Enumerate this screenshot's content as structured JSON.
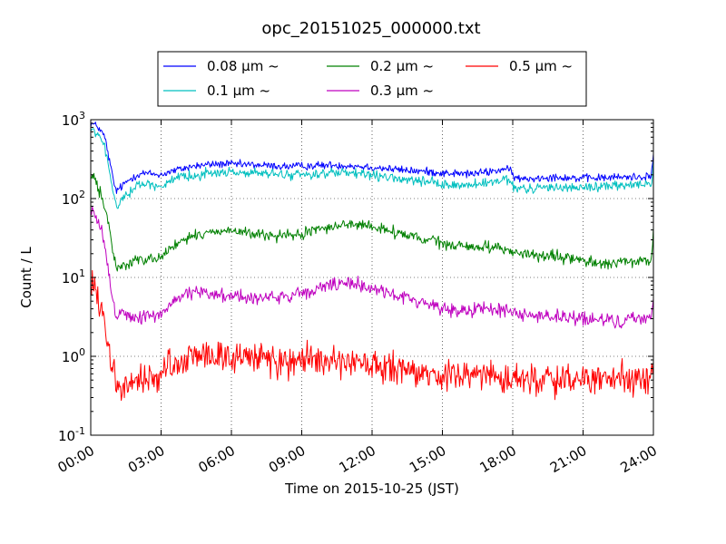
{
  "chart_data": {
    "type": "line",
    "title": "opc_20151025_000000.txt",
    "xlabel": "Time on 2015-10-25 (JST)",
    "ylabel": "Count / L",
    "yscale": "log",
    "ylim": [
      0.1,
      1000
    ],
    "xlim": [
      "00:00",
      "24:00"
    ],
    "x_unit": "hour",
    "x_ticks": [
      "00:00",
      "03:00",
      "06:00",
      "09:00",
      "12:00",
      "15:00",
      "18:00",
      "21:00",
      "24:00"
    ],
    "y_ticks": [
      {
        "value": 0.1,
        "base": "10",
        "exp": "-1"
      },
      {
        "value": 1,
        "base": "10",
        "exp": "0"
      },
      {
        "value": 10,
        "base": "10",
        "exp": "1"
      },
      {
        "value": 100,
        "base": "10",
        "exp": "2"
      },
      {
        "value": 1000,
        "base": "10",
        "exp": "3"
      }
    ],
    "grid": true,
    "legend_position": "top-center",
    "series": [
      {
        "name": "0.08 μm ~",
        "color": "#0000ff",
        "noise": 0.025,
        "points": [
          [
            0.0,
            900
          ],
          [
            0.3,
            820
          ],
          [
            0.6,
            600
          ],
          [
            0.8,
            300
          ],
          [
            1.0,
            150
          ],
          [
            1.1,
            125
          ],
          [
            1.3,
            140
          ],
          [
            1.6,
            170
          ],
          [
            1.9,
            195
          ],
          [
            2.2,
            210
          ],
          [
            2.6,
            205
          ],
          [
            3.0,
            200
          ],
          [
            3.3,
            215
          ],
          [
            3.8,
            235
          ],
          [
            4.3,
            255
          ],
          [
            5.0,
            270
          ],
          [
            5.7,
            275
          ],
          [
            6.3,
            270
          ],
          [
            7.0,
            268
          ],
          [
            7.6,
            260
          ],
          [
            8.3,
            255
          ],
          [
            9.0,
            258
          ],
          [
            9.6,
            262
          ],
          [
            10.3,
            265
          ],
          [
            11.0,
            262
          ],
          [
            11.6,
            255
          ],
          [
            12.0,
            250
          ],
          [
            12.6,
            240
          ],
          [
            13.3,
            230
          ],
          [
            14.0,
            222
          ],
          [
            14.6,
            218
          ],
          [
            15.0,
            210
          ],
          [
            15.6,
            208
          ],
          [
            16.2,
            205
          ],
          [
            16.8,
            215
          ],
          [
            17.3,
            225
          ],
          [
            17.7,
            240
          ],
          [
            17.9,
            220
          ],
          [
            18.1,
            185
          ],
          [
            18.4,
            175
          ],
          [
            19.0,
            182
          ],
          [
            19.6,
            188
          ],
          [
            20.2,
            186
          ],
          [
            20.8,
            180
          ],
          [
            21.5,
            182
          ],
          [
            22.2,
            185
          ],
          [
            23.0,
            188
          ],
          [
            23.6,
            190
          ],
          [
            23.9,
            195
          ],
          [
            23.97,
            280
          ],
          [
            24.0,
            380
          ]
        ]
      },
      {
        "name": "0.1 μm ~",
        "color": "#00bfbf",
        "noise": 0.03,
        "points": [
          [
            0.0,
            750
          ],
          [
            0.3,
            650
          ],
          [
            0.6,
            450
          ],
          [
            0.8,
            220
          ],
          [
            1.0,
            100
          ],
          [
            1.1,
            78
          ],
          [
            1.3,
            95
          ],
          [
            1.6,
            120
          ],
          [
            1.9,
            140
          ],
          [
            2.2,
            155
          ],
          [
            2.6,
            150
          ],
          [
            3.0,
            145
          ],
          [
            3.3,
            160
          ],
          [
            3.8,
            180
          ],
          [
            4.3,
            195
          ],
          [
            5.0,
            210
          ],
          [
            5.7,
            215
          ],
          [
            6.3,
            215
          ],
          [
            7.0,
            210
          ],
          [
            7.6,
            205
          ],
          [
            8.3,
            200
          ],
          [
            9.0,
            202
          ],
          [
            9.6,
            205
          ],
          [
            10.3,
            210
          ],
          [
            11.0,
            208
          ],
          [
            11.6,
            202
          ],
          [
            12.0,
            195
          ],
          [
            12.6,
            185
          ],
          [
            13.3,
            175
          ],
          [
            14.0,
            165
          ],
          [
            14.6,
            158
          ],
          [
            15.0,
            150
          ],
          [
            15.6,
            148
          ],
          [
            16.2,
            148
          ],
          [
            16.8,
            155
          ],
          [
            17.3,
            162
          ],
          [
            17.7,
            172
          ],
          [
            17.9,
            160
          ],
          [
            18.1,
            135
          ],
          [
            18.4,
            130
          ],
          [
            19.0,
            135
          ],
          [
            19.6,
            140
          ],
          [
            20.2,
            140
          ],
          [
            20.8,
            138
          ],
          [
            21.5,
            140
          ],
          [
            22.2,
            145
          ],
          [
            23.0,
            148
          ],
          [
            23.6,
            150
          ],
          [
            23.9,
            155
          ],
          [
            23.97,
            200
          ],
          [
            24.0,
            280
          ]
        ]
      },
      {
        "name": "0.2 μm ~",
        "color": "#008000",
        "noise": 0.035,
        "points": [
          [
            0.0,
            190
          ],
          [
            0.2,
            170
          ],
          [
            0.5,
            100
          ],
          [
            0.8,
            40
          ],
          [
            1.0,
            18
          ],
          [
            1.1,
            13
          ],
          [
            1.3,
            14
          ],
          [
            1.6,
            15
          ],
          [
            1.9,
            16
          ],
          [
            2.2,
            17
          ],
          [
            2.6,
            18
          ],
          [
            3.0,
            18
          ],
          [
            3.2,
            20
          ],
          [
            3.4,
            24
          ],
          [
            3.8,
            28
          ],
          [
            4.3,
            32
          ],
          [
            5.0,
            37
          ],
          [
            5.7,
            40
          ],
          [
            6.3,
            38
          ],
          [
            7.0,
            35
          ],
          [
            7.6,
            34
          ],
          [
            8.3,
            33
          ],
          [
            9.0,
            35
          ],
          [
            9.6,
            40
          ],
          [
            10.3,
            45
          ],
          [
            11.0,
            47
          ],
          [
            11.6,
            46
          ],
          [
            12.0,
            44
          ],
          [
            12.6,
            40
          ],
          [
            13.3,
            35
          ],
          [
            14.0,
            31
          ],
          [
            14.6,
            29
          ],
          [
            15.0,
            27
          ],
          [
            15.6,
            25
          ],
          [
            16.2,
            24
          ],
          [
            16.8,
            25
          ],
          [
            17.3,
            24
          ],
          [
            17.7,
            23
          ],
          [
            18.0,
            21
          ],
          [
            18.4,
            20
          ],
          [
            19.0,
            19
          ],
          [
            19.6,
            18
          ],
          [
            20.2,
            18
          ],
          [
            20.8,
            16.5
          ],
          [
            21.5,
            15.5
          ],
          [
            22.2,
            15
          ],
          [
            23.0,
            15.5
          ],
          [
            23.6,
            16
          ],
          [
            23.9,
            16.5
          ],
          [
            23.97,
            25
          ],
          [
            24.0,
            38
          ]
        ]
      },
      {
        "name": "0.3 μm ~",
        "color": "#bf00bf",
        "noise": 0.045,
        "points": [
          [
            0.0,
            70
          ],
          [
            0.2,
            60
          ],
          [
            0.5,
            35
          ],
          [
            0.8,
            10
          ],
          [
            1.0,
            4.5
          ],
          [
            1.1,
            3.3
          ],
          [
            1.3,
            3.6
          ],
          [
            1.6,
            3.4
          ],
          [
            1.9,
            3.0
          ],
          [
            2.2,
            3.1
          ],
          [
            2.6,
            3.2
          ],
          [
            3.0,
            3.4
          ],
          [
            3.2,
            4.0
          ],
          [
            3.5,
            5.0
          ],
          [
            3.9,
            6.0
          ],
          [
            4.4,
            6.4
          ],
          [
            5.0,
            6.3
          ],
          [
            5.7,
            6.0
          ],
          [
            6.3,
            5.8
          ],
          [
            7.0,
            5.5
          ],
          [
            7.6,
            5.6
          ],
          [
            8.3,
            5.7
          ],
          [
            9.0,
            6.0
          ],
          [
            9.6,
            7.0
          ],
          [
            10.2,
            8.0
          ],
          [
            10.8,
            8.2
          ],
          [
            11.4,
            8.0
          ],
          [
            12.0,
            7.5
          ],
          [
            12.6,
            6.5
          ],
          [
            13.3,
            5.6
          ],
          [
            14.0,
            5.0
          ],
          [
            14.6,
            4.5
          ],
          [
            15.0,
            4.0
          ],
          [
            15.6,
            3.8
          ],
          [
            16.2,
            3.9
          ],
          [
            16.8,
            4.1
          ],
          [
            17.3,
            3.9
          ],
          [
            17.7,
            3.8
          ],
          [
            18.0,
            3.6
          ],
          [
            18.4,
            3.5
          ],
          [
            19.0,
            3.3
          ],
          [
            19.6,
            3.2
          ],
          [
            20.2,
            3.1
          ],
          [
            20.8,
            3.0
          ],
          [
            21.5,
            2.9
          ],
          [
            22.2,
            2.8
          ],
          [
            23.0,
            2.9
          ],
          [
            23.6,
            3.0
          ],
          [
            23.9,
            3.1
          ],
          [
            23.97,
            5.0
          ],
          [
            24.0,
            7.0
          ]
        ]
      },
      {
        "name": "0.5 μm ~",
        "color": "#ff0000",
        "noise": 0.1,
        "points": [
          [
            0.0,
            8.0
          ],
          [
            0.2,
            7.0
          ],
          [
            0.5,
            3.5
          ],
          [
            0.8,
            1.0
          ],
          [
            1.0,
            0.55
          ],
          [
            1.1,
            0.42
          ],
          [
            1.3,
            0.4
          ],
          [
            1.6,
            0.42
          ],
          [
            1.9,
            0.48
          ],
          [
            2.2,
            0.5
          ],
          [
            2.6,
            0.52
          ],
          [
            3.0,
            0.55
          ],
          [
            3.3,
            0.7
          ],
          [
            3.7,
            0.85
          ],
          [
            4.3,
            1.0
          ],
          [
            5.0,
            1.05
          ],
          [
            5.7,
            1.02
          ],
          [
            6.3,
            0.98
          ],
          [
            7.0,
            0.95
          ],
          [
            7.6,
            0.92
          ],
          [
            8.3,
            0.9
          ],
          [
            9.0,
            0.88
          ],
          [
            9.6,
            0.86
          ],
          [
            10.3,
            0.82
          ],
          [
            11.0,
            0.8
          ],
          [
            11.6,
            0.78
          ],
          [
            12.0,
            0.75
          ],
          [
            12.6,
            0.7
          ],
          [
            13.3,
            0.65
          ],
          [
            14.0,
            0.6
          ],
          [
            14.6,
            0.57
          ],
          [
            15.0,
            0.55
          ],
          [
            15.6,
            0.56
          ],
          [
            16.2,
            0.57
          ],
          [
            16.8,
            0.58
          ],
          [
            17.3,
            0.56
          ],
          [
            17.7,
            0.55
          ],
          [
            18.0,
            0.53
          ],
          [
            18.4,
            0.52
          ],
          [
            19.0,
            0.52
          ],
          [
            19.6,
            0.51
          ],
          [
            20.2,
            0.5
          ],
          [
            20.8,
            0.5
          ],
          [
            21.5,
            0.5
          ],
          [
            22.2,
            0.5
          ],
          [
            23.0,
            0.5
          ],
          [
            23.6,
            0.5
          ],
          [
            23.9,
            0.52
          ],
          [
            23.97,
            0.75
          ],
          [
            24.0,
            0.95
          ]
        ]
      }
    ]
  }
}
